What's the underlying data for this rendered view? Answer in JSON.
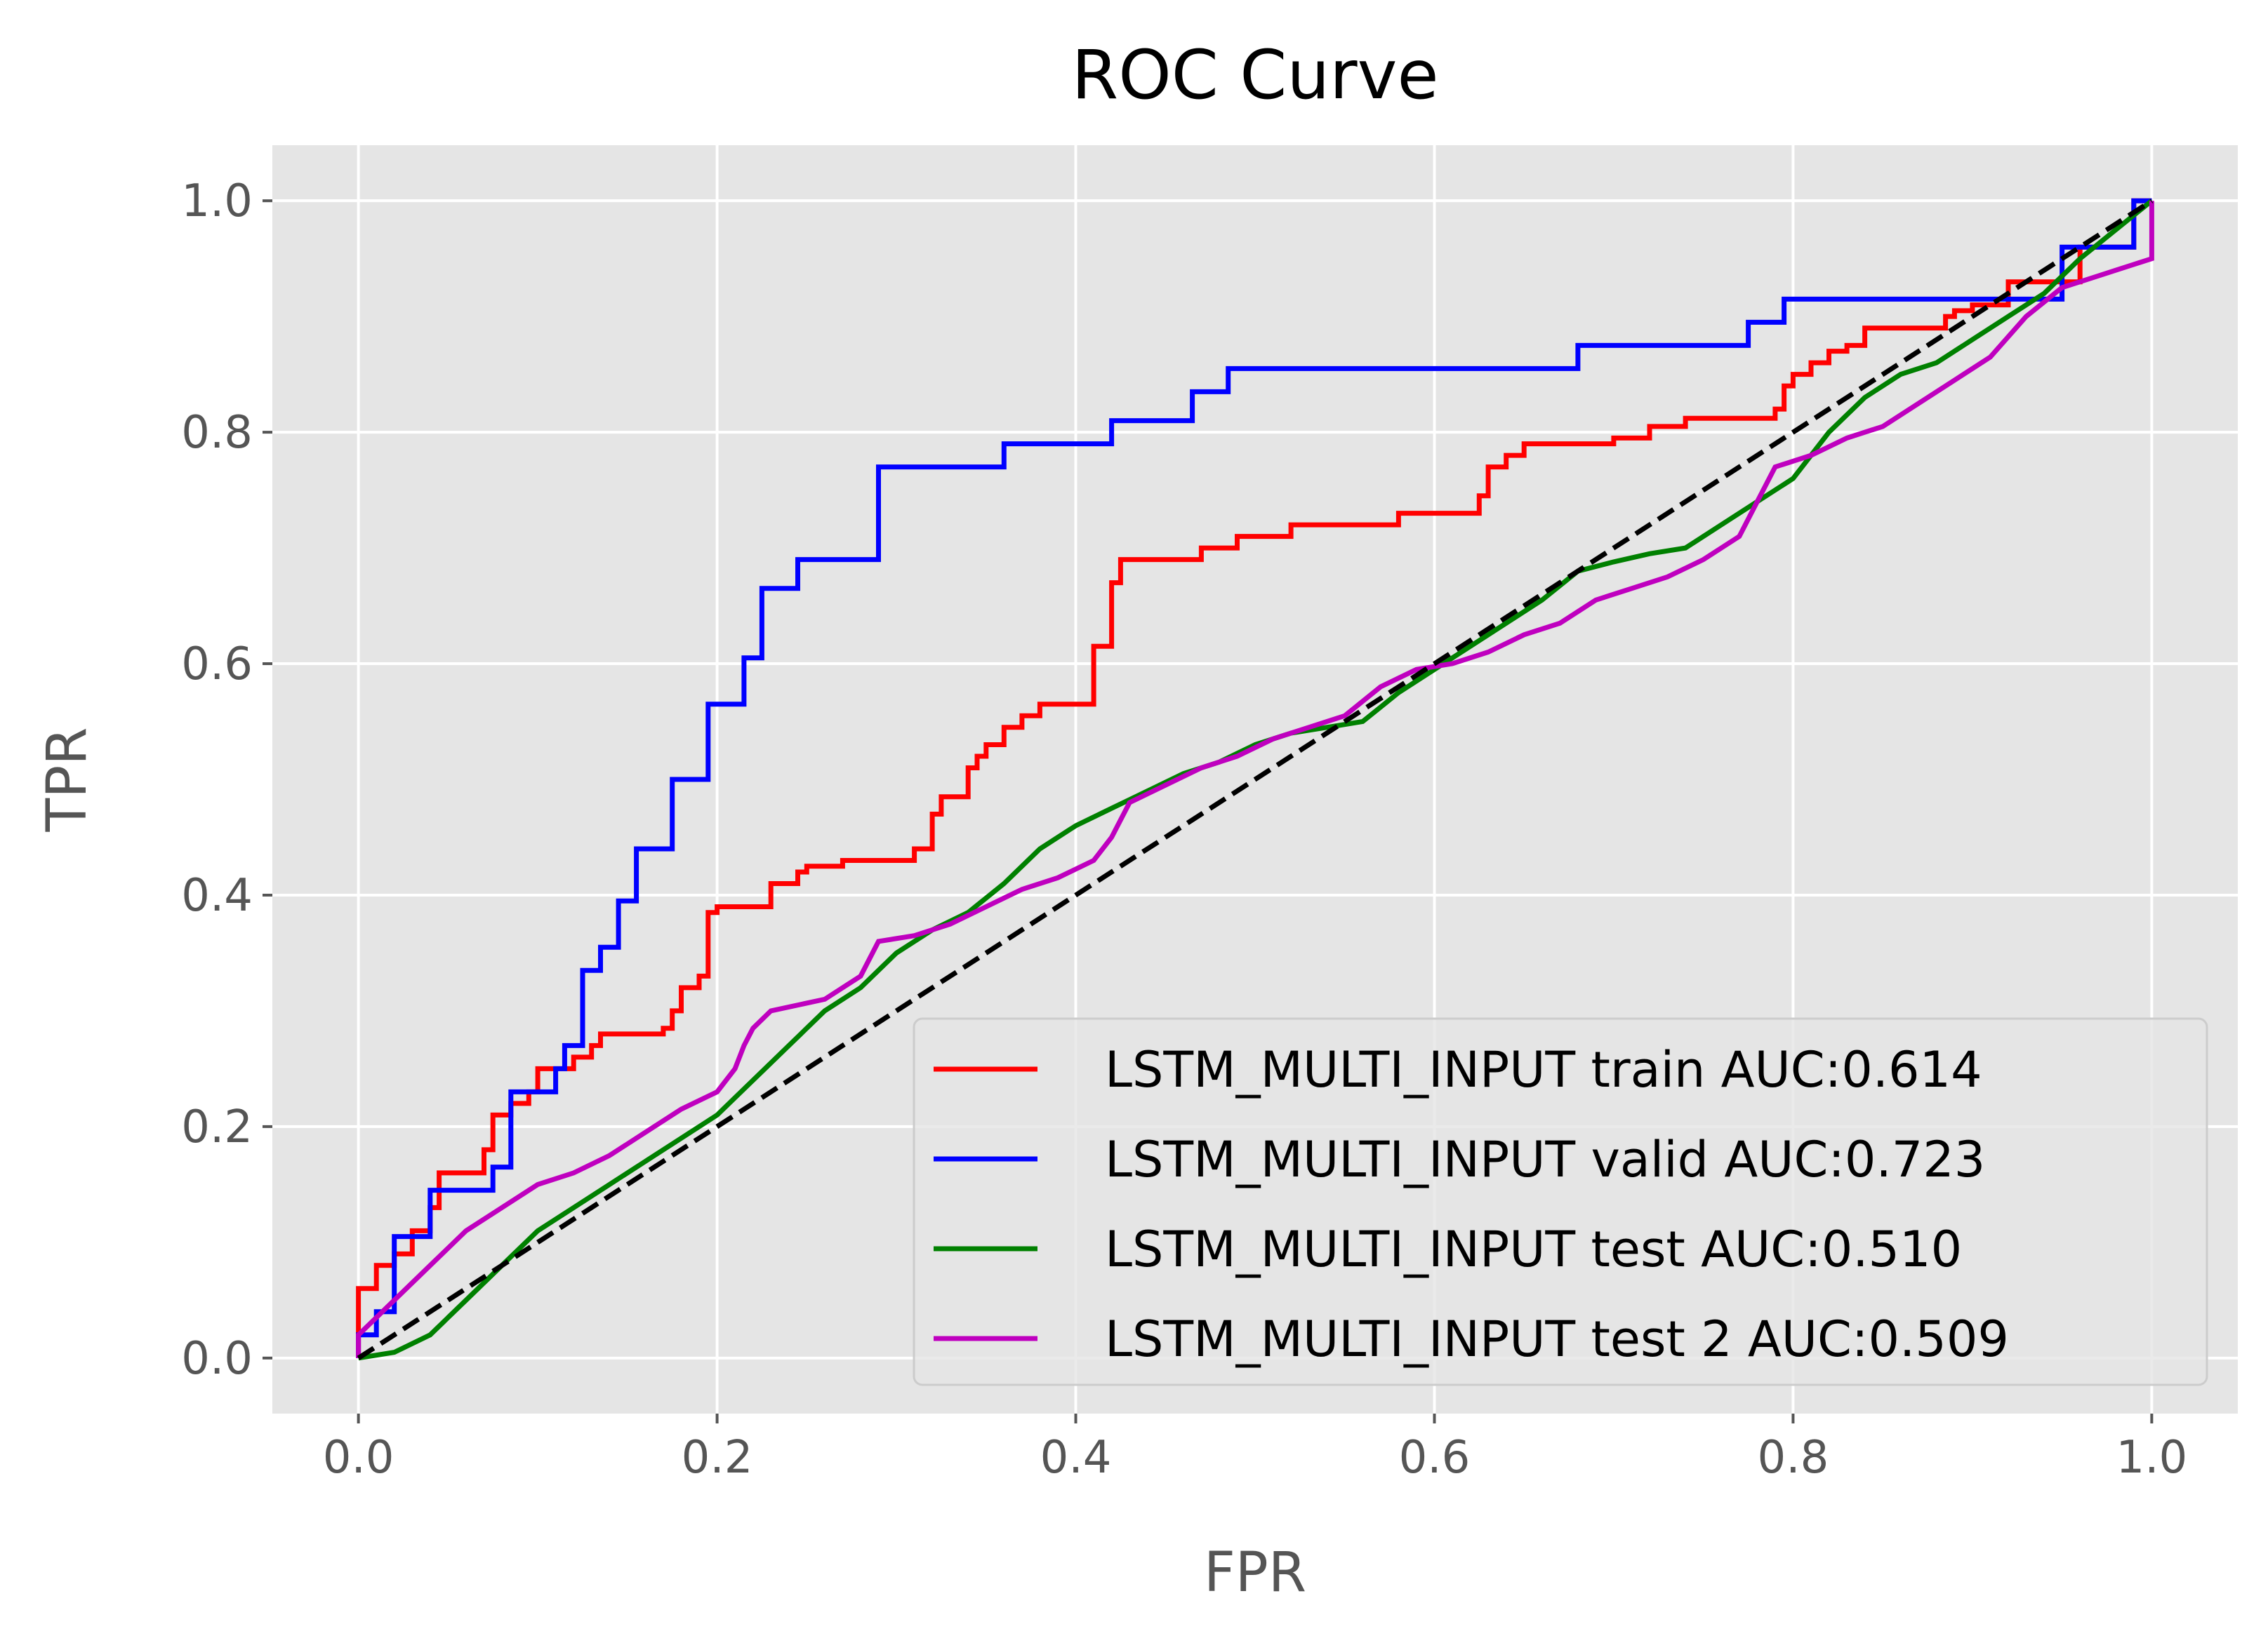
{
  "chart_data": {
    "type": "line",
    "title": "ROC Curve",
    "xlabel": "FPR",
    "ylabel": "TPR",
    "xlim": [
      -0.048,
      1.048
    ],
    "ylim": [
      -0.048,
      1.048
    ],
    "xticks": [
      "0.0",
      "0.2",
      "0.4",
      "0.6",
      "0.8",
      "1.0"
    ],
    "yticks": [
      "0.0",
      "0.2",
      "0.4",
      "0.6",
      "0.8",
      "1.0"
    ],
    "grid": true,
    "legend_position": "lower right",
    "series": [
      {
        "name": "LSTM_MULTI_INPUT train AUC:0.614",
        "color": "#ff0000",
        "style": "step",
        "points": [
          [
            0,
            0
          ],
          [
            0,
            0.03
          ],
          [
            0,
            0.06
          ],
          [
            0.01,
            0.06
          ],
          [
            0.01,
            0.08
          ],
          [
            0.02,
            0.08
          ],
          [
            0.02,
            0.09
          ],
          [
            0.03,
            0.09
          ],
          [
            0.03,
            0.11
          ],
          [
            0.04,
            0.11
          ],
          [
            0.04,
            0.13
          ],
          [
            0.045,
            0.13
          ],
          [
            0.045,
            0.16
          ],
          [
            0.07,
            0.16
          ],
          [
            0.07,
            0.18
          ],
          [
            0.075,
            0.18
          ],
          [
            0.075,
            0.21
          ],
          [
            0.085,
            0.21
          ],
          [
            0.085,
            0.22
          ],
          [
            0.095,
            0.22
          ],
          [
            0.095,
            0.23
          ],
          [
            0.1,
            0.23
          ],
          [
            0.1,
            0.25
          ],
          [
            0.12,
            0.25
          ],
          [
            0.12,
            0.26
          ],
          [
            0.13,
            0.26
          ],
          [
            0.13,
            0.27
          ],
          [
            0.135,
            0.27
          ],
          [
            0.135,
            0.28
          ],
          [
            0.17,
            0.28
          ],
          [
            0.17,
            0.285
          ],
          [
            0.175,
            0.285
          ],
          [
            0.175,
            0.3
          ],
          [
            0.18,
            0.3
          ],
          [
            0.18,
            0.32
          ],
          [
            0.19,
            0.32
          ],
          [
            0.19,
            0.33
          ],
          [
            0.195,
            0.33
          ],
          [
            0.195,
            0.385
          ],
          [
            0.2,
            0.385
          ],
          [
            0.2,
            0.39
          ],
          [
            0.23,
            0.39
          ],
          [
            0.23,
            0.41
          ],
          [
            0.245,
            0.41
          ],
          [
            0.245,
            0.42
          ],
          [
            0.25,
            0.42
          ],
          [
            0.25,
            0.425
          ],
          [
            0.27,
            0.425
          ],
          [
            0.27,
            0.43
          ],
          [
            0.31,
            0.43
          ],
          [
            0.31,
            0.44
          ],
          [
            0.32,
            0.44
          ],
          [
            0.32,
            0.47
          ],
          [
            0.325,
            0.47
          ],
          [
            0.325,
            0.485
          ],
          [
            0.34,
            0.485
          ],
          [
            0.34,
            0.51
          ],
          [
            0.345,
            0.51
          ],
          [
            0.345,
            0.52
          ],
          [
            0.35,
            0.52
          ],
          [
            0.35,
            0.53
          ],
          [
            0.36,
            0.53
          ],
          [
            0.36,
            0.545
          ],
          [
            0.37,
            0.545
          ],
          [
            0.37,
            0.555
          ],
          [
            0.38,
            0.555
          ],
          [
            0.38,
            0.565
          ],
          [
            0.41,
            0.565
          ],
          [
            0.41,
            0.615
          ],
          [
            0.42,
            0.615
          ],
          [
            0.42,
            0.67
          ],
          [
            0.425,
            0.67
          ],
          [
            0.425,
            0.69
          ],
          [
            0.47,
            0.69
          ],
          [
            0.47,
            0.7
          ],
          [
            0.49,
            0.7
          ],
          [
            0.49,
            0.71
          ],
          [
            0.52,
            0.71
          ],
          [
            0.52,
            0.72
          ],
          [
            0.58,
            0.72
          ],
          [
            0.58,
            0.73
          ],
          [
            0.625,
            0.73
          ],
          [
            0.625,
            0.745
          ],
          [
            0.63,
            0.745
          ],
          [
            0.63,
            0.77
          ],
          [
            0.64,
            0.77
          ],
          [
            0.64,
            0.78
          ],
          [
            0.65,
            0.78
          ],
          [
            0.65,
            0.79
          ],
          [
            0.7,
            0.79
          ],
          [
            0.7,
            0.795
          ],
          [
            0.72,
            0.795
          ],
          [
            0.72,
            0.805
          ],
          [
            0.74,
            0.805
          ],
          [
            0.74,
            0.812
          ],
          [
            0.79,
            0.812
          ],
          [
            0.79,
            0.82
          ],
          [
            0.795,
            0.82
          ],
          [
            0.795,
            0.84
          ],
          [
            0.8,
            0.84
          ],
          [
            0.8,
            0.85
          ],
          [
            0.81,
            0.85
          ],
          [
            0.81,
            0.86
          ],
          [
            0.82,
            0.86
          ],
          [
            0.82,
            0.87
          ],
          [
            0.83,
            0.87
          ],
          [
            0.83,
            0.875
          ],
          [
            0.84,
            0.875
          ],
          [
            0.84,
            0.89
          ],
          [
            0.885,
            0.89
          ],
          [
            0.885,
            0.9
          ],
          [
            0.89,
            0.9
          ],
          [
            0.89,
            0.905
          ],
          [
            0.9,
            0.905
          ],
          [
            0.9,
            0.91
          ],
          [
            0.92,
            0.91
          ],
          [
            0.92,
            0.93
          ],
          [
            0.96,
            0.93
          ],
          [
            0.96,
            0.96
          ],
          [
            0.99,
            0.96
          ],
          [
            0.99,
            1.0
          ],
          [
            1.0,
            1.0
          ]
        ]
      },
      {
        "name": "LSTM_MULTI_INPUT valid AUC:0.723",
        "color": "#0000ff",
        "style": "step",
        "points": [
          [
            0,
            0
          ],
          [
            0,
            0.02
          ],
          [
            0.01,
            0.02
          ],
          [
            0.01,
            0.04
          ],
          [
            0.02,
            0.04
          ],
          [
            0.02,
            0.105
          ],
          [
            0.04,
            0.105
          ],
          [
            0.04,
            0.145
          ],
          [
            0.075,
            0.145
          ],
          [
            0.075,
            0.165
          ],
          [
            0.085,
            0.165
          ],
          [
            0.085,
            0.23
          ],
          [
            0.11,
            0.23
          ],
          [
            0.11,
            0.25
          ],
          [
            0.115,
            0.25
          ],
          [
            0.115,
            0.27
          ],
          [
            0.125,
            0.27
          ],
          [
            0.125,
            0.335
          ],
          [
            0.135,
            0.335
          ],
          [
            0.135,
            0.355
          ],
          [
            0.145,
            0.355
          ],
          [
            0.145,
            0.395
          ],
          [
            0.155,
            0.395
          ],
          [
            0.155,
            0.44
          ],
          [
            0.175,
            0.44
          ],
          [
            0.175,
            0.5
          ],
          [
            0.195,
            0.5
          ],
          [
            0.195,
            0.565
          ],
          [
            0.215,
            0.565
          ],
          [
            0.215,
            0.605
          ],
          [
            0.225,
            0.605
          ],
          [
            0.225,
            0.665
          ],
          [
            0.245,
            0.665
          ],
          [
            0.245,
            0.69
          ],
          [
            0.29,
            0.69
          ],
          [
            0.29,
            0.77
          ],
          [
            0.36,
            0.77
          ],
          [
            0.36,
            0.79
          ],
          [
            0.42,
            0.79
          ],
          [
            0.42,
            0.81
          ],
          [
            0.465,
            0.81
          ],
          [
            0.465,
            0.835
          ],
          [
            0.485,
            0.835
          ],
          [
            0.485,
            0.855
          ],
          [
            0.68,
            0.855
          ],
          [
            0.68,
            0.875
          ],
          [
            0.775,
            0.875
          ],
          [
            0.775,
            0.895
          ],
          [
            0.795,
            0.895
          ],
          [
            0.795,
            0.915
          ],
          [
            0.95,
            0.915
          ],
          [
            0.95,
            0.96
          ],
          [
            0.99,
            0.96
          ],
          [
            0.99,
            1.0
          ],
          [
            1.0,
            1.0
          ]
        ]
      },
      {
        "name": "LSTM_MULTI_INPUT test AUC:0.510",
        "color": "#008000",
        "style": "line",
        "points": [
          [
            0,
            0
          ],
          [
            0.02,
            0.005
          ],
          [
            0.04,
            0.02
          ],
          [
            0.06,
            0.05
          ],
          [
            0.08,
            0.08
          ],
          [
            0.1,
            0.11
          ],
          [
            0.12,
            0.13
          ],
          [
            0.14,
            0.15
          ],
          [
            0.16,
            0.17
          ],
          [
            0.18,
            0.19
          ],
          [
            0.2,
            0.21
          ],
          [
            0.22,
            0.24
          ],
          [
            0.24,
            0.27
          ],
          [
            0.26,
            0.3
          ],
          [
            0.28,
            0.32
          ],
          [
            0.3,
            0.35
          ],
          [
            0.32,
            0.37
          ],
          [
            0.34,
            0.385
          ],
          [
            0.36,
            0.41
          ],
          [
            0.38,
            0.44
          ],
          [
            0.4,
            0.46
          ],
          [
            0.42,
            0.475
          ],
          [
            0.44,
            0.49
          ],
          [
            0.46,
            0.505
          ],
          [
            0.48,
            0.515
          ],
          [
            0.5,
            0.53
          ],
          [
            0.52,
            0.54
          ],
          [
            0.54,
            0.545
          ],
          [
            0.56,
            0.55
          ],
          [
            0.58,
            0.575
          ],
          [
            0.6,
            0.595
          ],
          [
            0.62,
            0.615
          ],
          [
            0.64,
            0.635
          ],
          [
            0.66,
            0.655
          ],
          [
            0.68,
            0.68
          ],
          [
            0.7,
            0.688
          ],
          [
            0.72,
            0.695
          ],
          [
            0.74,
            0.7
          ],
          [
            0.76,
            0.72
          ],
          [
            0.78,
            0.74
          ],
          [
            0.8,
            0.76
          ],
          [
            0.82,
            0.8
          ],
          [
            0.84,
            0.83
          ],
          [
            0.86,
            0.85
          ],
          [
            0.88,
            0.86
          ],
          [
            0.9,
            0.88
          ],
          [
            0.92,
            0.9
          ],
          [
            0.94,
            0.92
          ],
          [
            0.96,
            0.95
          ],
          [
            0.98,
            0.975
          ],
          [
            1.0,
            1.0
          ]
        ]
      },
      {
        "name": "LSTM_MULTI_INPUT test 2 AUC:0.509",
        "color": "#bf00bf",
        "style": "line",
        "points": [
          [
            0,
            0
          ],
          [
            0,
            0.02
          ],
          [
            0.02,
            0.05
          ],
          [
            0.04,
            0.08
          ],
          [
            0.06,
            0.11
          ],
          [
            0.08,
            0.13
          ],
          [
            0.1,
            0.15
          ],
          [
            0.12,
            0.16
          ],
          [
            0.14,
            0.175
          ],
          [
            0.16,
            0.195
          ],
          [
            0.18,
            0.215
          ],
          [
            0.2,
            0.23
          ],
          [
            0.21,
            0.25
          ],
          [
            0.215,
            0.27
          ],
          [
            0.22,
            0.285
          ],
          [
            0.23,
            0.3
          ],
          [
            0.26,
            0.31
          ],
          [
            0.28,
            0.33
          ],
          [
            0.29,
            0.36
          ],
          [
            0.31,
            0.365
          ],
          [
            0.33,
            0.375
          ],
          [
            0.35,
            0.39
          ],
          [
            0.37,
            0.405
          ],
          [
            0.39,
            0.415
          ],
          [
            0.41,
            0.43
          ],
          [
            0.42,
            0.45
          ],
          [
            0.43,
            0.48
          ],
          [
            0.45,
            0.495
          ],
          [
            0.47,
            0.51
          ],
          [
            0.49,
            0.52
          ],
          [
            0.51,
            0.535
          ],
          [
            0.53,
            0.545
          ],
          [
            0.55,
            0.555
          ],
          [
            0.57,
            0.58
          ],
          [
            0.59,
            0.595
          ],
          [
            0.61,
            0.6
          ],
          [
            0.63,
            0.61
          ],
          [
            0.65,
            0.625
          ],
          [
            0.67,
            0.635
          ],
          [
            0.69,
            0.655
          ],
          [
            0.71,
            0.665
          ],
          [
            0.73,
            0.675
          ],
          [
            0.75,
            0.69
          ],
          [
            0.77,
            0.71
          ],
          [
            0.78,
            0.74
          ],
          [
            0.79,
            0.77
          ],
          [
            0.81,
            0.78
          ],
          [
            0.83,
            0.795
          ],
          [
            0.85,
            0.805
          ],
          [
            0.87,
            0.825
          ],
          [
            0.89,
            0.845
          ],
          [
            0.91,
            0.865
          ],
          [
            0.93,
            0.9
          ],
          [
            0.95,
            0.925
          ],
          [
            0.97,
            0.935
          ],
          [
            0.99,
            0.945
          ],
          [
            1.0,
            0.95
          ],
          [
            1.0,
            1.0
          ]
        ]
      },
      {
        "name": "",
        "color": "#000000",
        "style": "dashed",
        "points": [
          [
            0,
            0
          ],
          [
            1,
            1
          ]
        ]
      }
    ]
  }
}
